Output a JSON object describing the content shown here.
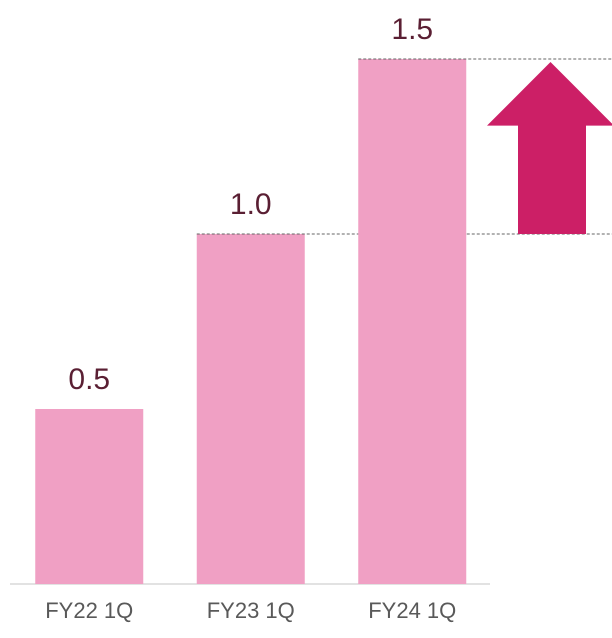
{
  "chart_data": {
    "type": "bar",
    "categories": [
      "FY22 1Q",
      "FY23 1Q",
      "FY24 1Q"
    ],
    "values": [
      0.5,
      1,
      1.5
    ],
    "value_labels": [
      "0.5",
      "1.0",
      "1.5"
    ],
    "color": "#f0a0c4",
    "arrow_color": "#cc1f66",
    "ylim": [
      0,
      1.6
    ]
  }
}
